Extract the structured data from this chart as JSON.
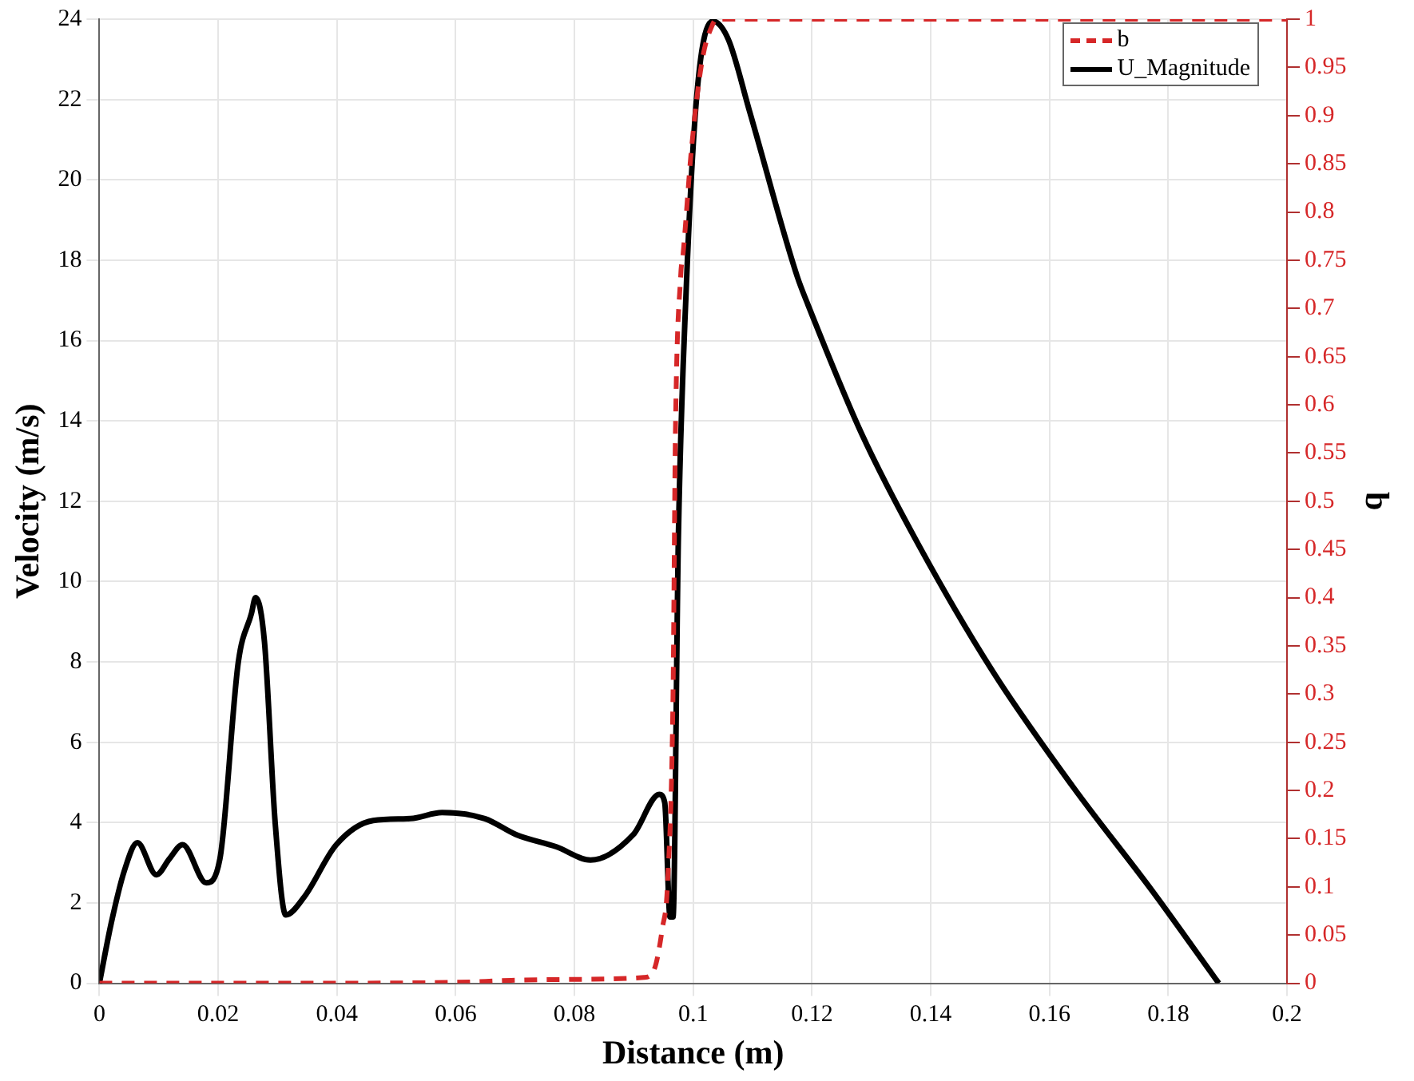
{
  "chart_data": {
    "type": "line",
    "xlabel": "Distance (m)",
    "ylabel": "Velocity (m/s)",
    "y2label": "b",
    "xlim": [
      0,
      0.2
    ],
    "xticks": [
      0,
      0.02,
      0.04,
      0.06,
      0.08,
      0.1,
      0.12,
      0.14,
      0.16,
      0.18,
      0.2
    ],
    "ylim": [
      0,
      24
    ],
    "yticks": [
      0,
      2,
      4,
      6,
      8,
      10,
      12,
      14,
      16,
      18,
      20,
      22,
      24
    ],
    "y2lim": [
      0,
      1
    ],
    "y2ticks": [
      0,
      0.05,
      0.1,
      0.15,
      0.2,
      0.25,
      0.3,
      0.35,
      0.4,
      0.45,
      0.5,
      0.55,
      0.6,
      0.65,
      0.7,
      0.75,
      0.8,
      0.85,
      0.9,
      0.95,
      1
    ],
    "grid": true,
    "legend": "top right",
    "marker": "none",
    "series": [
      {
        "name": "b",
        "color": "#d62728",
        "axis": "y2",
        "line_style": "dashed",
        "x": [
          0,
          0.03,
          0.06,
          0.0693,
          0.08,
          0.0917,
          0.0934,
          0.0948,
          0.0957,
          0.0966,
          0.097,
          0.0979,
          0.0983,
          0.0997,
          0.1015,
          0.1033,
          0.104,
          0.2
        ],
        "values": [
          0,
          0,
          0.001,
          0.003,
          0.004,
          0.006,
          0.014,
          0.057,
          0.106,
          0.3,
          0.57,
          0.735,
          0.757,
          0.865,
          0.957,
          0.995,
          1,
          1
        ]
      },
      {
        "name": "U_Magnitude",
        "color": "#000000",
        "line_style": "solid",
        "x": [
          0,
          0.002,
          0.0042,
          0.0064,
          0.0096,
          0.0118,
          0.014,
          0.018,
          0.0203,
          0.0234,
          0.0256,
          0.0263,
          0.0278,
          0.0296,
          0.0314,
          0.0345,
          0.0399,
          0.0461,
          0.0524,
          0.0577,
          0.0649,
          0.0702,
          0.0769,
          0.0827,
          0.0899,
          0.0943,
          0.0952,
          0.0961,
          0.0966,
          0.0975,
          0.0988,
          0.1006,
          0.1033,
          0.1059,
          0.1095,
          0.1175,
          0.1193,
          0.1283,
          0.138,
          0.1505,
          0.1639,
          0.1773,
          0.1885
        ],
        "values": [
          0,
          1.5,
          2.8,
          3.5,
          2.7,
          3.1,
          3.45,
          2.5,
          3.1,
          8.0,
          9.2,
          9.6,
          8.5,
          4.0,
          1.7,
          2.15,
          3.45,
          4.05,
          4.1,
          4.25,
          4.1,
          3.7,
          3.4,
          3.07,
          3.7,
          4.7,
          4.5,
          1.65,
          1.65,
          11.1,
          17.2,
          22.1,
          23.95,
          23.5,
          21.7,
          17.6,
          16.9,
          13.7,
          10.9,
          7.75,
          4.9,
          2.3,
          0
        ]
      }
    ]
  }
}
